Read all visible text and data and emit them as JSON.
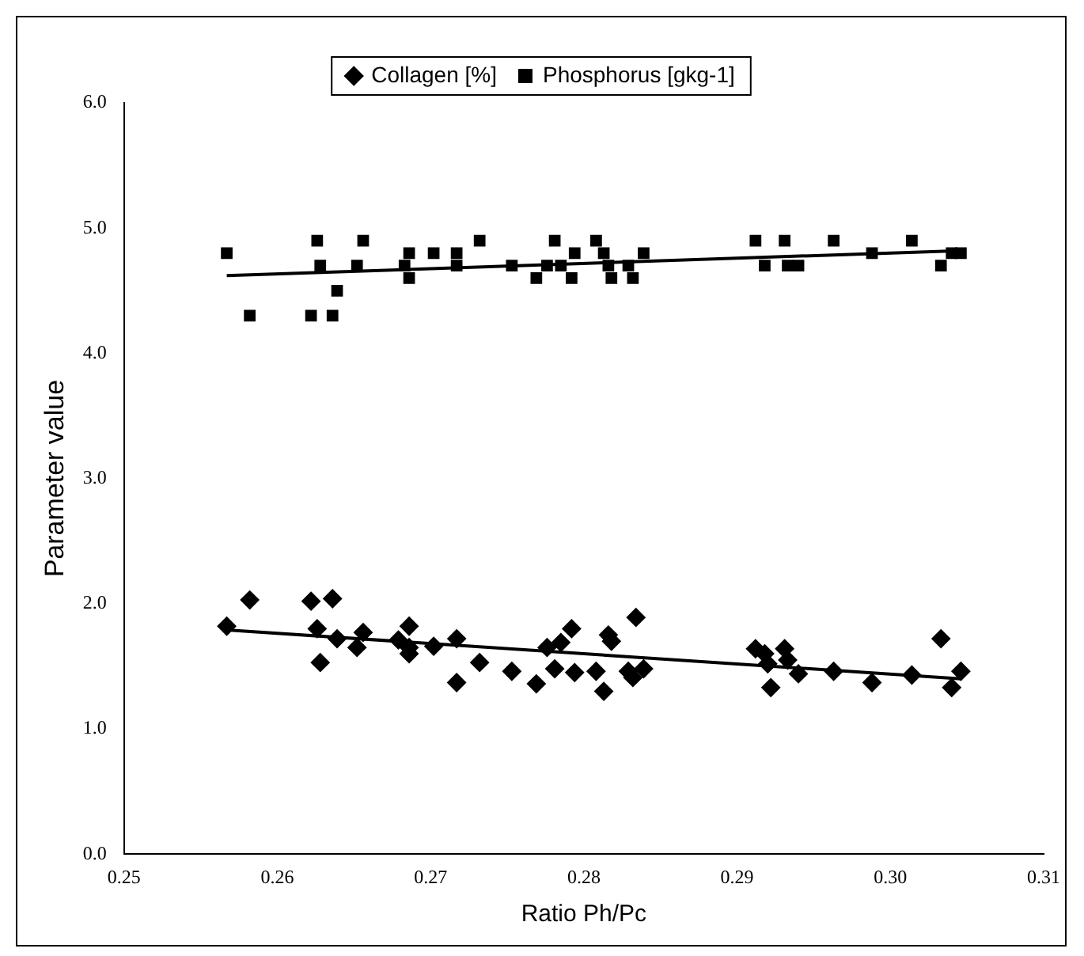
{
  "chart_data": {
    "type": "scatter",
    "xlabel": "Ratio Ph/Pc",
    "ylabel": "Parameter value",
    "xlim": [
      0.25,
      0.31
    ],
    "xticks": [
      0.25,
      0.26,
      0.27,
      0.28,
      0.29,
      {
        "value": 0.3,
        "label": "0.30"
      },
      0.31
    ],
    "ylim": [
      0,
      6
    ],
    "yticks": [
      {
        "value": 0,
        "label": "0.0"
      },
      {
        "value": 1,
        "label": "1.0"
      },
      {
        "value": 2,
        "label": "2.0"
      },
      {
        "value": 3,
        "label": "3.0"
      },
      {
        "value": 4,
        "label": "4.0"
      },
      {
        "value": 5,
        "label": "5.0"
      },
      {
        "value": 6,
        "label": "6.0"
      }
    ],
    "grid": false,
    "legend": "top",
    "series": [
      {
        "name": "Collagen [%]",
        "color": "#000000",
        "marker": "diamond",
        "x": [
          0.2567,
          0.2582,
          0.2622,
          0.2626,
          0.2628,
          0.2636,
          0.2639,
          0.2652,
          0.2656,
          0.2679,
          0.2686,
          0.2686,
          0.2686,
          0.2702,
          0.2717,
          0.2717,
          0.2732,
          0.2753,
          0.2769,
          0.2776,
          0.2781,
          0.2785,
          0.2792,
          0.2794,
          0.2808,
          0.2813,
          0.2816,
          0.2818,
          0.2829,
          0.2832,
          0.2834,
          0.2839,
          0.2912,
          0.2918,
          0.292,
          0.2922,
          0.2931,
          0.2933,
          0.294,
          0.2963,
          0.2988,
          0.3014,
          0.3033,
          0.304,
          0.3046
        ],
        "values": [
          1.82,
          2.03,
          2.02,
          1.8,
          1.53,
          2.04,
          1.72,
          1.65,
          1.77,
          1.71,
          1.82,
          1.65,
          1.6,
          1.66,
          1.37,
          1.72,
          1.53,
          1.46,
          1.36,
          1.65,
          1.48,
          1.69,
          1.8,
          1.45,
          1.46,
          1.3,
          1.75,
          1.7,
          1.46,
          1.41,
          1.89,
          1.48,
          1.64,
          1.6,
          1.52,
          1.33,
          1.64,
          1.55,
          1.44,
          1.46,
          1.37,
          1.43,
          1.72,
          1.33,
          1.46
        ]
      },
      {
        "name": "Phosphorus [gkg-1]",
        "color": "#000000",
        "marker": "square",
        "x": [
          0.2567,
          0.2582,
          0.2622,
          0.2626,
          0.2628,
          0.2636,
          0.2639,
          0.2652,
          0.2656,
          0.2683,
          0.2686,
          0.2686,
          0.2702,
          0.2717,
          0.2717,
          0.2732,
          0.2753,
          0.2769,
          0.2776,
          0.2781,
          0.2785,
          0.2792,
          0.2794,
          0.2808,
          0.2813,
          0.2816,
          0.2818,
          0.2829,
          0.2832,
          0.2839,
          0.2912,
          0.2918,
          0.2931,
          0.2933,
          0.294,
          0.2963,
          0.2988,
          0.3014,
          0.3033,
          0.304,
          0.3046
        ],
        "values": [
          4.8,
          4.3,
          4.3,
          4.9,
          4.7,
          4.3,
          4.5,
          4.7,
          4.9,
          4.7,
          4.6,
          4.8,
          4.8,
          4.7,
          4.8,
          4.9,
          4.7,
          4.6,
          4.7,
          4.9,
          4.7,
          4.6,
          4.8,
          4.9,
          4.8,
          4.7,
          4.6,
          4.7,
          4.6,
          4.8,
          4.9,
          4.7,
          4.9,
          4.7,
          4.7,
          4.9,
          4.8,
          4.9,
          4.7,
          4.8,
          4.8
        ]
      },
      {
        "type": "line",
        "color": "#000000",
        "marker": "none",
        "x": [
          0.2567,
          0.3046
        ],
        "values": [
          1.79,
          1.4
        ]
      },
      {
        "type": "line",
        "color": "#000000",
        "marker": "none",
        "x": [
          0.2567,
          0.3046
        ],
        "values": [
          4.62,
          4.82
        ]
      }
    ]
  }
}
